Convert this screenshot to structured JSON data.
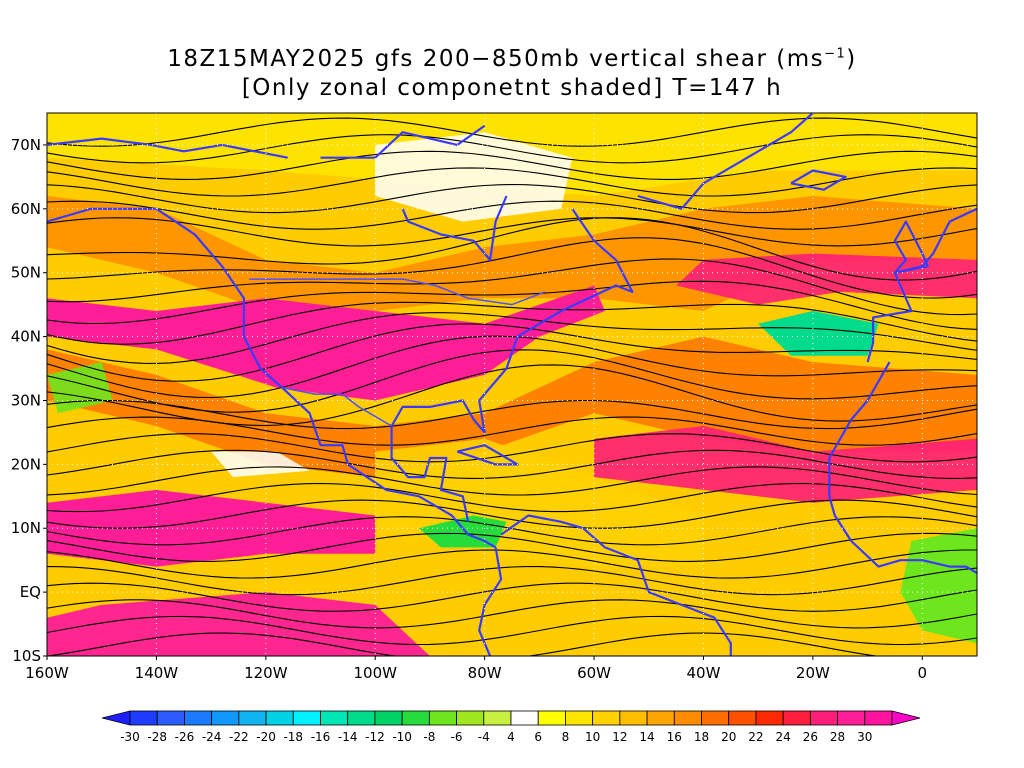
{
  "title": {
    "line1_prefix": "18Z15MAY2025 gfs 200−850mb vertical shear (ms",
    "line1_sup": "−1",
    "line1_suffix": ")",
    "line2": "[Only zonal componetnt shaded] T=147 h"
  },
  "map": {
    "lon_range": [
      -160,
      10
    ],
    "lat_range": [
      -10,
      75
    ],
    "lon_ticks": [
      {
        "lon": -160,
        "label": "160W"
      },
      {
        "lon": -140,
        "label": "140W"
      },
      {
        "lon": -120,
        "label": "120W"
      },
      {
        "lon": -100,
        "label": "100W"
      },
      {
        "lon": -80,
        "label": "80W"
      },
      {
        "lon": -60,
        "label": "60W"
      },
      {
        "lon": -40,
        "label": "40W"
      },
      {
        "lon": -20,
        "label": "20W"
      },
      {
        "lon": 0,
        "label": "0"
      }
    ],
    "lat_ticks": [
      {
        "lat": 70,
        "label": "70N"
      },
      {
        "lat": 60,
        "label": "60N"
      },
      {
        "lat": 50,
        "label": "50N"
      },
      {
        "lat": 40,
        "label": "40N"
      },
      {
        "lat": 30,
        "label": "30N"
      },
      {
        "lat": 20,
        "label": "20N"
      },
      {
        "lat": 10,
        "label": "10N"
      },
      {
        "lat": 0,
        "label": "EQ"
      },
      {
        "lat": -10,
        "label": "10S"
      }
    ],
    "shading_variable": "zonal vertical shear",
    "shear_bands": [
      {
        "name": "equatorial-jet",
        "lat": 8,
        "strength": 27
      },
      {
        "name": "subtropical-jet-north-america",
        "lat": 38,
        "strength": 28
      },
      {
        "name": "atlantic-jet",
        "lat": 47,
        "strength": 26
      },
      {
        "name": "trade-easterly-band-caribbean",
        "lat": 12,
        "strength": -9
      },
      {
        "name": "east-atlantic-low",
        "lat": 40,
        "strength": -12
      }
    ]
  },
  "colorbar": {
    "labels": [
      "-30",
      "-28",
      "-26",
      "-24",
      "-22",
      "-20",
      "-18",
      "-16",
      "-14",
      "-12",
      "-10",
      "-8",
      "-6",
      "-4",
      "4",
      "6",
      "8",
      "10",
      "12",
      "14",
      "16",
      "18",
      "20",
      "22",
      "24",
      "26",
      "28",
      "30"
    ],
    "colors": [
      "#1e3cff",
      "#2a5cff",
      "#1b7bff",
      "#0f99ff",
      "#10b4f0",
      "#00d2e6",
      "#00f0ff",
      "#00e6b4",
      "#00dc8c",
      "#00d264",
      "#26dc3c",
      "#6ee61e",
      "#a0e61e",
      "#c8f040",
      "#ffffff",
      "#ffff00",
      "#ffe600",
      "#ffd200",
      "#ffbe00",
      "#ffa500",
      "#ff8c00",
      "#ff6e00",
      "#ff5000",
      "#ff2800",
      "#ff1e3c",
      "#ff1e78",
      "#ff1e96",
      "#ff14a0"
    ]
  }
}
